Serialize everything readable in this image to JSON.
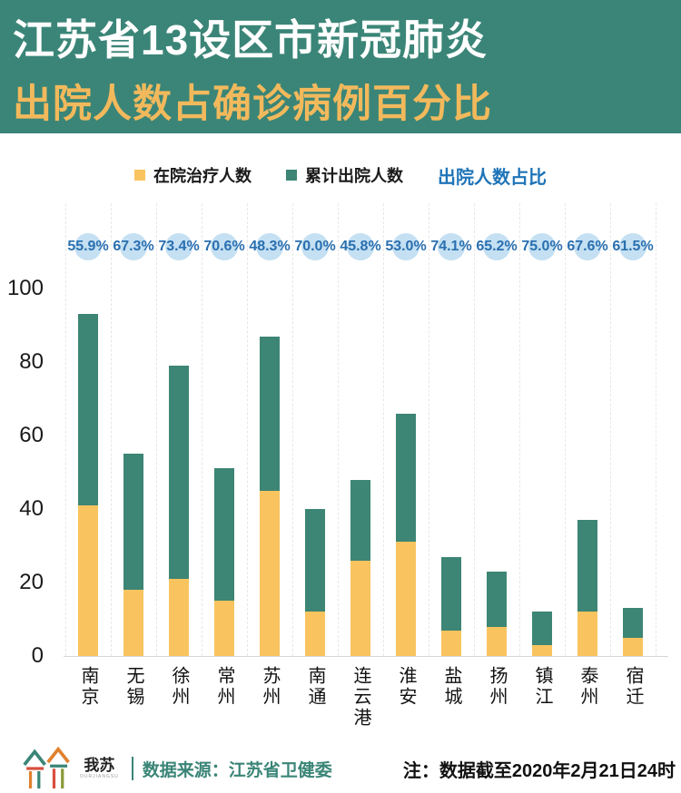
{
  "header": {
    "title_line1": "江苏省13设区市新冠肺炎",
    "title_line2": "出院人数占确诊病例百分比"
  },
  "legend": {
    "in_hospital_label": "在院治疗人数",
    "discharged_label": "累计出院人数",
    "ratio_label": "出院人数占比"
  },
  "chart_data": {
    "type": "bar",
    "stacked": true,
    "title": "江苏省13设区市新冠肺炎出院人数占确诊病例百分比",
    "categories": [
      "南京",
      "无锡",
      "徐州",
      "常州",
      "苏州",
      "南通",
      "连云港",
      "淮安",
      "盐城",
      "扬州",
      "镇江",
      "泰州",
      "宿迁"
    ],
    "series": [
      {
        "name": "在院治疗人数",
        "color": "#f9c45f",
        "values": [
          41,
          18,
          21,
          15,
          45,
          12,
          26,
          31,
          7,
          8,
          3,
          12,
          5
        ]
      },
      {
        "name": "累计出院人数",
        "color": "#3d8574",
        "values": [
          52,
          37,
          58,
          36,
          42,
          28,
          22,
          35,
          20,
          15,
          9,
          25,
          8
        ]
      }
    ],
    "totals": [
      93,
      55,
      79,
      51,
      87,
      40,
      48,
      66,
      27,
      23,
      12,
      37,
      13
    ],
    "percent_labels": [
      "55.9%",
      "67.3%",
      "73.4%",
      "70.6%",
      "48.3%",
      "70.0%",
      "45.8%",
      "53.0%",
      "74.1%",
      "65.2%",
      "75.0%",
      "67.6%",
      "61.5%"
    ],
    "percent_label_legend": "出院人数占比",
    "y_ticks": [
      0,
      20,
      40,
      60,
      80,
      100
    ],
    "ylim": [
      0,
      100
    ],
    "xlabel": "",
    "ylabel": "",
    "grid": "vertical-dashed",
    "legend_position": "top"
  },
  "colors": {
    "header_bg": "#3a8577",
    "title_accent": "#f2b95c",
    "bar_yellow": "#f9c45f",
    "bar_green": "#3d8574",
    "percent_blue": "#2a6fb0",
    "percent_circle": "#badaf0",
    "ratio_text_blue": "#1f74b8"
  },
  "footer": {
    "logo_cn": "我苏",
    "logo_en": "OURJIANGSU",
    "source": "数据来源：江苏省卫健委",
    "note": "注：数据截至2020年2月21日24时"
  }
}
